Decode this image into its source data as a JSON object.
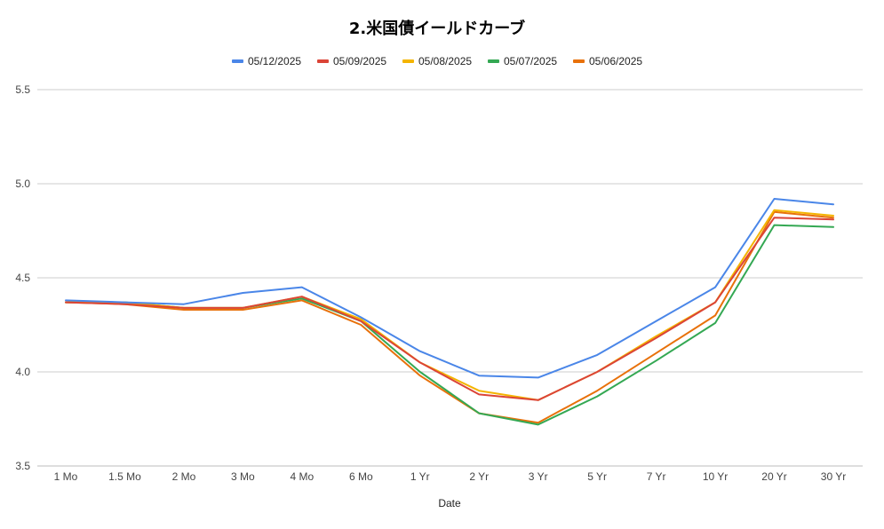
{
  "chart_data": {
    "type": "line",
    "title": "2.米国債イールドカーブ",
    "xlabel": "Date",
    "ylabel": "",
    "categories": [
      "1 Mo",
      "1.5 Mo",
      "2 Mo",
      "3 Mo",
      "4 Mo",
      "6 Mo",
      "1 Yr",
      "2 Yr",
      "3 Yr",
      "5 Yr",
      "7 Yr",
      "10 Yr",
      "20 Yr",
      "30 Yr"
    ],
    "ylim": [
      3.5,
      5.5
    ],
    "yticks": [
      "3.5",
      "4.0",
      "4.5",
      "5.0",
      "5.5"
    ],
    "grid": true,
    "legend_position": "top",
    "series": [
      {
        "name": "05/12/2025",
        "color": "#4a86e8",
        "values": [
          4.38,
          4.37,
          4.36,
          4.42,
          4.45,
          4.29,
          4.11,
          3.98,
          3.97,
          4.09,
          4.27,
          4.45,
          4.92,
          4.89
        ]
      },
      {
        "name": "05/09/2025",
        "color": "#db4437",
        "values": [
          4.37,
          4.36,
          4.34,
          4.34,
          4.4,
          4.27,
          4.05,
          3.88,
          3.85,
          4.0,
          4.18,
          4.37,
          4.82,
          4.81
        ]
      },
      {
        "name": "05/08/2025",
        "color": "#f4b400",
        "values": [
          4.37,
          4.37,
          4.34,
          4.34,
          4.4,
          4.28,
          4.05,
          3.9,
          3.85,
          4.0,
          4.19,
          4.37,
          4.86,
          4.83
        ]
      },
      {
        "name": "05/07/2025",
        "color": "#34a853",
        "values": [
          4.37,
          4.37,
          4.34,
          4.34,
          4.39,
          4.27,
          4.0,
          3.78,
          3.72,
          3.87,
          4.06,
          4.26,
          4.78,
          4.77
        ]
      },
      {
        "name": "05/06/2025",
        "color": "#e8710a",
        "values": [
          4.37,
          4.36,
          4.33,
          4.33,
          4.38,
          4.25,
          3.98,
          3.78,
          3.73,
          3.9,
          4.1,
          4.3,
          4.85,
          4.82
        ]
      }
    ]
  }
}
